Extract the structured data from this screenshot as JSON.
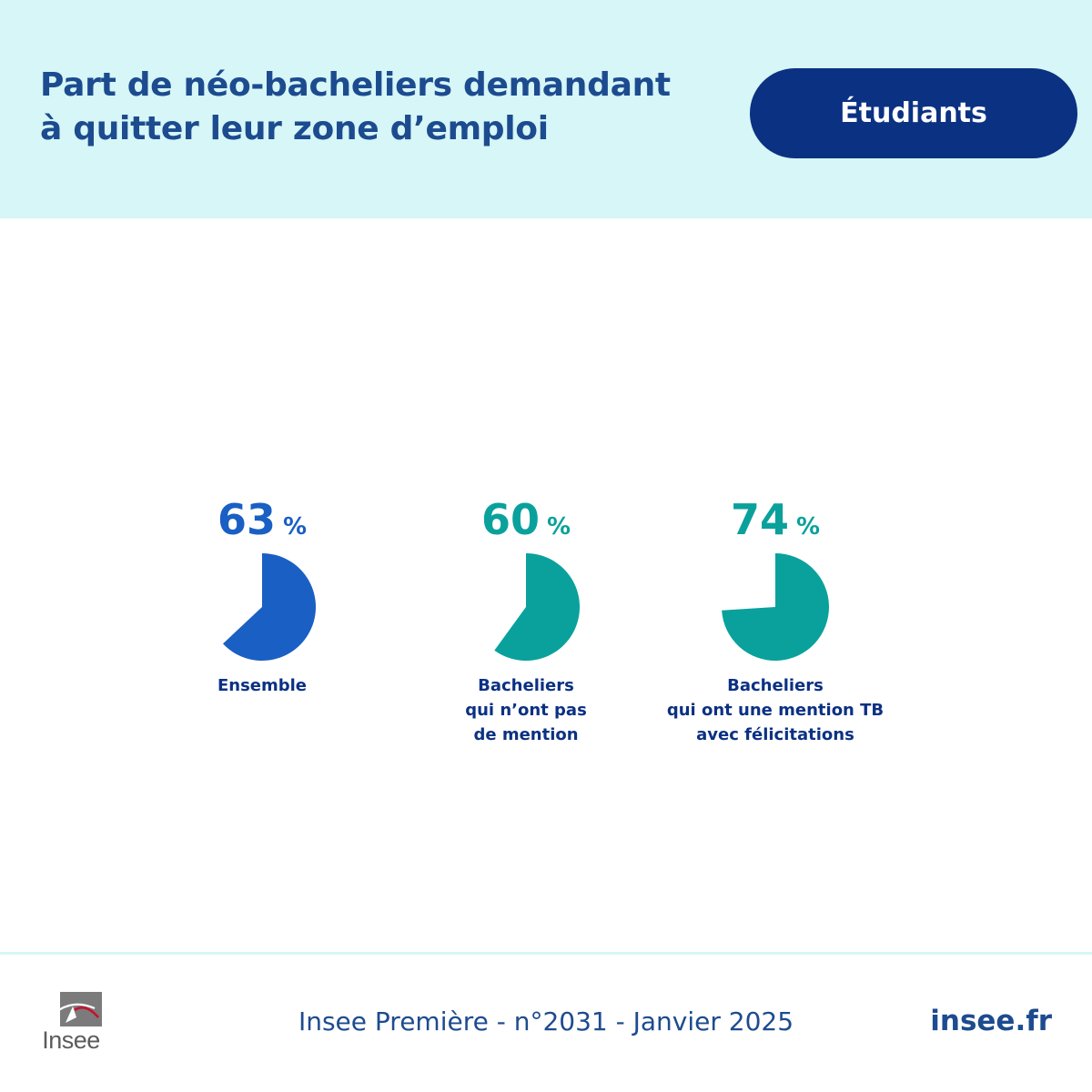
{
  "header": {
    "title_lines": [
      "Part de néo-bacheliers demandant",
      "à quitter leur zone d’emploi"
    ],
    "category_badge": "Étudiants"
  },
  "chart_data": {
    "type": "pie",
    "unit": "%",
    "colors": {
      "blue": "#1a5fc3",
      "teal": "#0aa19c",
      "label": "#0b3183"
    },
    "items": [
      {
        "value": 63,
        "label_lines": [
          "Ensemble"
        ],
        "color": "#1a5fc3"
      },
      {
        "value": 60,
        "label_lines": [
          "Bacheliers",
          "qui n’ont pas",
          "de mention"
        ],
        "color": "#0aa19c"
      },
      {
        "value": 74,
        "label_lines": [
          "Bacheliers",
          "qui ont une mention TB",
          "avec félicitations"
        ],
        "color": "#0aa19c"
      }
    ]
  },
  "footer": {
    "logo_text": "Insee",
    "source": "Insee Première - n°2031 - Janvier 2025",
    "site": "insee.fr"
  }
}
